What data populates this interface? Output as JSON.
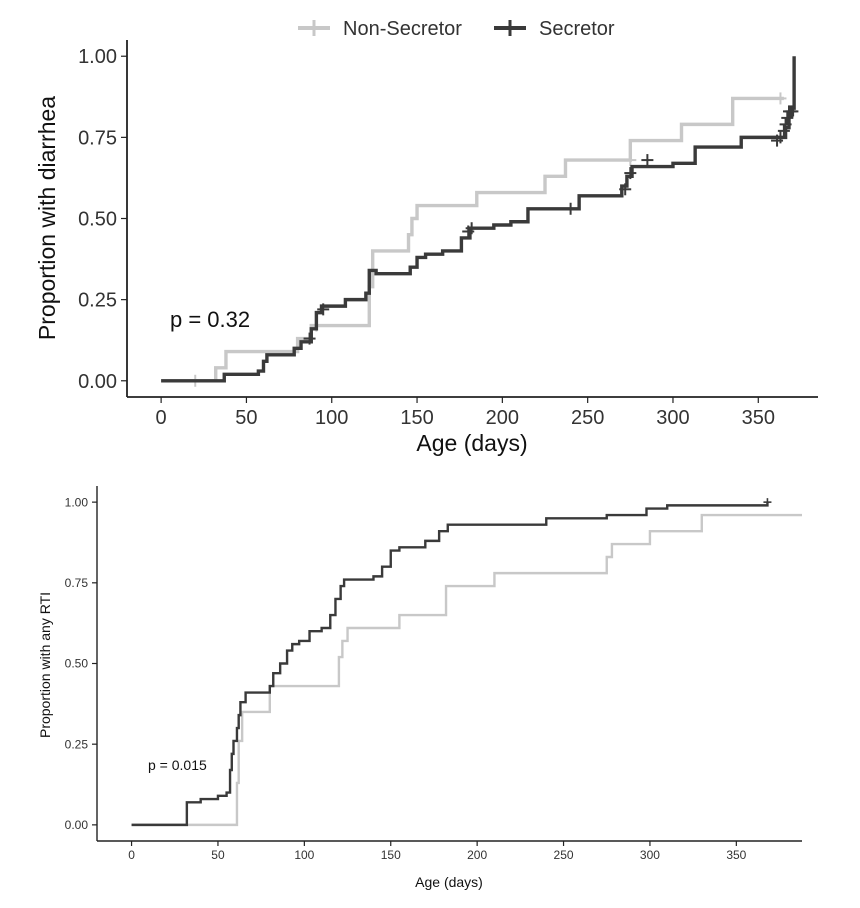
{
  "legend": {
    "items": [
      {
        "label": "Non-Secretor",
        "color": "#c8c8c8"
      },
      {
        "label": "Secretor",
        "color": "#3a3a3a"
      }
    ]
  },
  "chart_data": [
    {
      "type": "line",
      "title": "",
      "xlabel": "Age (days)",
      "ylabel": "Proportion with diarrhea",
      "annotation": "p = 0.32",
      "xlim": [
        -20,
        385
      ],
      "ylim": [
        -0.05,
        1.05
      ],
      "xticks": [
        0,
        50,
        100,
        150,
        200,
        250,
        300,
        350
      ],
      "yticks": [
        "0.00",
        "0.25",
        "0.50",
        "0.75",
        "1.00"
      ],
      "grid": false,
      "legend_position": "top",
      "series": [
        {
          "name": "Non-Secretor",
          "color": "#c8c8c8",
          "steps": [
            [
              0,
              0
            ],
            [
              30,
              0
            ],
            [
              32,
              0.04
            ],
            [
              38,
              0.09
            ],
            [
              80,
              0.13
            ],
            [
              88,
              0.17
            ],
            [
              120,
              0.17
            ],
            [
              122,
              0.29
            ],
            [
              124,
              0.4
            ],
            [
              143,
              0.4
            ],
            [
              145,
              0.45
            ],
            [
              147,
              0.5
            ],
            [
              150,
              0.54
            ],
            [
              185,
              0.58
            ],
            [
              225,
              0.63
            ],
            [
              237,
              0.68
            ],
            [
              275,
              0.74
            ],
            [
              305,
              0.79
            ],
            [
              335,
              0.87
            ],
            [
              365,
              0.87
            ]
          ],
          "censored": [
            [
              20,
              0
            ],
            [
              91,
              0.17
            ],
            [
              275,
              0.68
            ],
            [
              363,
              0.87
            ]
          ]
        },
        {
          "name": "Secretor",
          "color": "#3a3a3a",
          "steps": [
            [
              0,
              0
            ],
            [
              35,
              0
            ],
            [
              37,
              0.02
            ],
            [
              57,
              0.03
            ],
            [
              60,
              0.06
            ],
            [
              62,
              0.08
            ],
            [
              78,
              0.1
            ],
            [
              82,
              0.12
            ],
            [
              88,
              0.16
            ],
            [
              91,
              0.21
            ],
            [
              94,
              0.23
            ],
            [
              108,
              0.25
            ],
            [
              120,
              0.27
            ],
            [
              122,
              0.34
            ],
            [
              126,
              0.33
            ],
            [
              146,
              0.35
            ],
            [
              150,
              0.38
            ],
            [
              155,
              0.39
            ],
            [
              165,
              0.4
            ],
            [
              176,
              0.44
            ],
            [
              181,
              0.47
            ],
            [
              195,
              0.48
            ],
            [
              205,
              0.49
            ],
            [
              215,
              0.53
            ],
            [
              245,
              0.57
            ],
            [
              270,
              0.6
            ],
            [
              273,
              0.63
            ],
            [
              276,
              0.66
            ],
            [
              300,
              0.67
            ],
            [
              313,
              0.72
            ],
            [
              340,
              0.75
            ],
            [
              362,
              0.75
            ],
            [
              366,
              0.78
            ],
            [
              368,
              0.82
            ],
            [
              370,
              0.84
            ],
            [
              371,
              1.0
            ]
          ],
          "censored": [
            [
              87,
              0.13
            ],
            [
              95,
              0.22
            ],
            [
              180,
              0.46
            ],
            [
              182,
              0.47
            ],
            [
              240,
              0.53
            ],
            [
              272,
              0.59
            ],
            [
              275,
              0.64
            ],
            [
              285,
              0.68
            ],
            [
              361,
              0.74
            ],
            [
              363,
              0.75
            ],
            [
              365,
              0.77
            ],
            [
              366,
              0.79
            ],
            [
              367,
              0.81
            ],
            [
              368,
              0.83
            ],
            [
              369,
              0.83
            ],
            [
              370,
              0.83
            ]
          ]
        }
      ]
    },
    {
      "type": "line",
      "title": "",
      "xlabel": "Age (days)",
      "ylabel": "Proportion with any RTI",
      "annotation": "p = 0.015",
      "xlim": [
        -20,
        388
      ],
      "ylim": [
        -0.05,
        1.05
      ],
      "xticks": [
        0,
        50,
        100,
        150,
        200,
        250,
        300,
        350
      ],
      "yticks": [
        "0.00",
        "0.25",
        "0.50",
        "0.75",
        "1.00"
      ],
      "grid": false,
      "series": [
        {
          "name": "Non-Secretor",
          "color": "#c8c8c8",
          "steps": [
            [
              0,
              0
            ],
            [
              60,
              0
            ],
            [
              61,
              0.13
            ],
            [
              62,
              0.26
            ],
            [
              64,
              0.35
            ],
            [
              80,
              0.43
            ],
            [
              120,
              0.52
            ],
            [
              122,
              0.57
            ],
            [
              125,
              0.61
            ],
            [
              155,
              0.65
            ],
            [
              182,
              0.74
            ],
            [
              210,
              0.78
            ],
            [
              275,
              0.83
            ],
            [
              278,
              0.87
            ],
            [
              300,
              0.91
            ],
            [
              330,
              0.96
            ],
            [
              388,
              0.96
            ]
          ],
          "censored": []
        },
        {
          "name": "Secretor",
          "color": "#3a3a3a",
          "steps": [
            [
              0,
              0
            ],
            [
              30,
              0
            ],
            [
              32,
              0.07
            ],
            [
              40,
              0.08
            ],
            [
              50,
              0.09
            ],
            [
              55,
              0.1
            ],
            [
              57,
              0.17
            ],
            [
              58,
              0.22
            ],
            [
              59,
              0.26
            ],
            [
              61,
              0.3
            ],
            [
              62,
              0.34
            ],
            [
              63,
              0.38
            ],
            [
              66,
              0.41
            ],
            [
              80,
              0.43
            ],
            [
              82,
              0.47
            ],
            [
              86,
              0.5
            ],
            [
              90,
              0.54
            ],
            [
              93,
              0.56
            ],
            [
              97,
              0.57
            ],
            [
              103,
              0.6
            ],
            [
              110,
              0.61
            ],
            [
              115,
              0.65
            ],
            [
              118,
              0.7
            ],
            [
              121,
              0.74
            ],
            [
              123,
              0.76
            ],
            [
              140,
              0.77
            ],
            [
              145,
              0.8
            ],
            [
              150,
              0.85
            ],
            [
              155,
              0.86
            ],
            [
              170,
              0.88
            ],
            [
              178,
              0.91
            ],
            [
              183,
              0.93
            ],
            [
              240,
              0.95
            ],
            [
              275,
              0.96
            ],
            [
              298,
              0.98
            ],
            [
              310,
              0.99
            ],
            [
              368,
              1.0
            ]
          ],
          "censored": [
            [
              368,
              1.0
            ]
          ]
        }
      ]
    }
  ]
}
